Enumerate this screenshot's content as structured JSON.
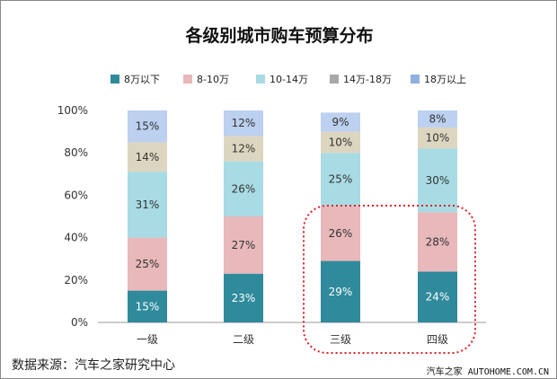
{
  "chart_data": {
    "type": "stacked-bar-100",
    "title": "各级别城市购车预算分布",
    "categories": [
      "一级",
      "二级",
      "三级",
      "四级"
    ],
    "series": [
      {
        "name": "8万以下",
        "color": "#2f8a9b",
        "values": [
          15,
          23,
          29,
          24
        ]
      },
      {
        "name": "8-10万",
        "color": "#e8b8ba",
        "values": [
          25,
          27,
          26,
          28
        ]
      },
      {
        "name": "10-14万",
        "color": "#a8dbe4",
        "values": [
          31,
          26,
          25,
          30
        ]
      },
      {
        "name": "14万-18万",
        "color": "#dcd6c1",
        "legend_color": "#a8a8a8",
        "values": [
          14,
          12,
          10,
          10
        ]
      },
      {
        "name": "18万以上",
        "color": "#bcd0ef",
        "legend_color": "#8fb0e0",
        "values": [
          15,
          12,
          9,
          8
        ]
      }
    ],
    "yticks": [
      "0%",
      "20%",
      "40%",
      "60%",
      "80%",
      "100%"
    ],
    "ylim": [
      0,
      100
    ],
    "legend_position": "top",
    "highlight": {
      "categories": [
        "三级",
        "四级"
      ],
      "color": "#d9202a",
      "style": "dotted-rounded-box"
    }
  },
  "footer": {
    "source": "数据来源：汽车之家研究中心",
    "brand": "汽车之家 AUTOHOME.COM.CN"
  }
}
